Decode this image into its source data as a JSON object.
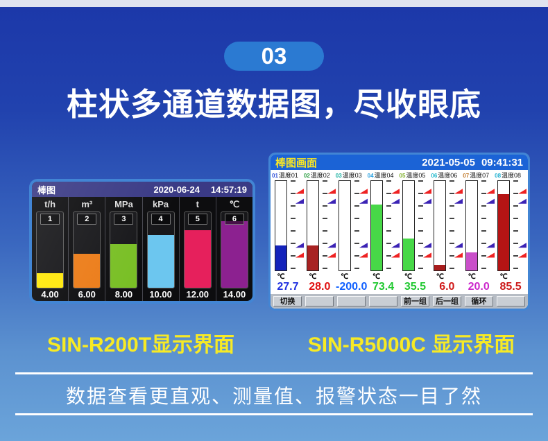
{
  "page": {
    "badge": "03",
    "title": "柱状多通道数据图，尽收眼底",
    "left_caption": "SIN-R200T显示界面",
    "right_caption": "SIN-R5000C 显示界面",
    "footer_text": "数据查看更直观、测量值、报警状态一目了然",
    "accent_blue": "#2b7ad2",
    "caption_yellow": "#f7ea25"
  },
  "left_device": {
    "title": "棒图",
    "date": "2020-06-24",
    "time": "14:57:19",
    "channels": [
      {
        "unit": "t/h",
        "number": "1",
        "value": "4.00",
        "fill_percent": 19,
        "fill_color": "#ffe80a"
      },
      {
        "unit": "m³",
        "number": "2",
        "value": "6.00",
        "fill_percent": 45,
        "fill_color": "#ec7c18"
      },
      {
        "unit": "MPa",
        "number": "3",
        "value": "8.00",
        "fill_percent": 58,
        "fill_color": "#79bf25"
      },
      {
        "unit": "kPa",
        "number": "4",
        "value": "10.00",
        "fill_percent": 70,
        "fill_color": "#6cc6ef"
      },
      {
        "unit": "t",
        "number": "5",
        "value": "12.00",
        "fill_percent": 76,
        "fill_color": "#e6205c"
      },
      {
        "unit": "℃",
        "number": "6",
        "value": "14.00",
        "fill_percent": 88,
        "fill_color": "#8c2190"
      }
    ]
  },
  "right_device": {
    "title": "棒图画面",
    "date": "2021-05-05",
    "time": "09:41:31",
    "channels": [
      {
        "id": "01",
        "name": "温度01",
        "id_color": "#3050d8",
        "unit": "℃",
        "value": "27.7",
        "value_color": "#2030e0",
        "fill_percent": 27.7,
        "fill_color": "#1423bb"
      },
      {
        "id": "02",
        "name": "温度02",
        "id_color": "#2fa045",
        "unit": "℃",
        "value": "28.0",
        "value_color": "#e01010",
        "fill_percent": 28,
        "fill_color": "#a82222"
      },
      {
        "id": "03",
        "name": "温度03",
        "id_color": "#18b0a0",
        "unit": "℃",
        "value": "-200.0",
        "value_color": "#1060ff",
        "fill_percent": 0,
        "fill_color": "#ffffff"
      },
      {
        "id": "04",
        "name": "温度04",
        "id_color": "#28a0e0",
        "unit": "℃",
        "value": "73.4",
        "value_color": "#20c830",
        "fill_percent": 73.4,
        "fill_color": "#47d847"
      },
      {
        "id": "05",
        "name": "温度05",
        "id_color": "#7fae2a",
        "unit": "℃",
        "value": "35.5",
        "value_color": "#20c830",
        "fill_percent": 35.5,
        "fill_color": "#47d847"
      },
      {
        "id": "06",
        "name": "温度06",
        "id_color": "#20b8cc",
        "unit": "℃",
        "value": "6.0",
        "value_color": "#d01818",
        "fill_percent": 6,
        "fill_color": "#a81c1c"
      },
      {
        "id": "07",
        "name": "温度07",
        "id_color": "#c07828",
        "unit": "℃",
        "value": "20.0",
        "value_color": "#cc28cc",
        "fill_percent": 20,
        "fill_color": "#c94fc9"
      },
      {
        "id": "08",
        "name": "温度08",
        "id_color": "#20b0d0",
        "unit": "℃",
        "value": "85.5",
        "value_color": "#cc1818",
        "fill_percent": 85.5,
        "fill_color": "#b51414"
      }
    ],
    "buttons": [
      "切换",
      "",
      "",
      "",
      "前一组",
      "后一组",
      "循环",
      ""
    ]
  }
}
